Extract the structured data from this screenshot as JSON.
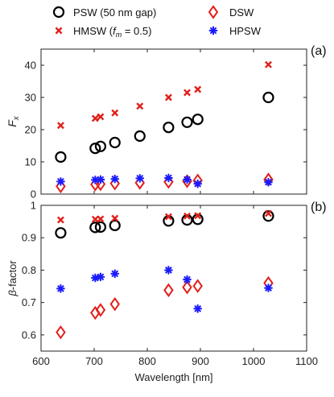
{
  "legend": [
    {
      "key": "psw",
      "label": "PSW (50 nm gap)",
      "color": "#000000",
      "marker": "circle"
    },
    {
      "key": "dsw",
      "label": "DSW",
      "color": "#e0201b",
      "marker": "diamond"
    },
    {
      "key": "hmsw",
      "label_prefix": "HMSW (",
      "label_var": "f",
      "label_sub": "m",
      "label_suffix": " = 0.5)",
      "color": "#e0201b",
      "marker": "x"
    },
    {
      "key": "hpsw",
      "label": "HPSW",
      "color": "#1a1aff",
      "marker": "asterisk"
    }
  ],
  "chart_data": [
    {
      "type": "scatter",
      "panel_tag": "(a)",
      "ylabel_var": "F",
      "ylabel_sub": "x",
      "xlim": [
        600,
        1100
      ],
      "ylim": [
        0,
        45
      ],
      "yticks": [
        0,
        10,
        20,
        30,
        40
      ],
      "xticks": [
        600,
        700,
        800,
        900,
        1000,
        1100
      ],
      "show_xtick_labels": false,
      "grid": false,
      "series": [
        {
          "key": "psw",
          "x": [
            637,
            702,
            712,
            739,
            786,
            840,
            875,
            895,
            1028
          ],
          "y": [
            11.5,
            14.2,
            14.8,
            16.0,
            18.0,
            20.7,
            22.3,
            23.2,
            30.0
          ]
        },
        {
          "key": "hmsw",
          "x": [
            637,
            702,
            712,
            739,
            786,
            840,
            875,
            895,
            1028
          ],
          "y": [
            21.3,
            23.5,
            24.0,
            25.2,
            27.3,
            30.0,
            31.5,
            32.5,
            40.2
          ]
        },
        {
          "key": "dsw",
          "x": [
            637,
            702,
            712,
            739,
            786,
            840,
            875,
            895,
            1028
          ],
          "y": [
            2.4,
            3.0,
            3.1,
            3.3,
            3.5,
            3.8,
            4.0,
            4.2,
            4.5
          ]
        },
        {
          "key": "hpsw",
          "x": [
            637,
            702,
            712,
            739,
            786,
            840,
            875,
            895,
            1028
          ],
          "y": [
            3.9,
            4.4,
            4.5,
            4.7,
            4.9,
            5.0,
            4.5,
            3.2,
            3.7
          ]
        }
      ]
    },
    {
      "type": "scatter",
      "panel_tag": "(b)",
      "ylabel_var": "β",
      "ylabel_suffix": "-factor",
      "xlabel": "Wavelength [nm]",
      "xlim": [
        600,
        1100
      ],
      "ylim": [
        0.55,
        1.0
      ],
      "yticks": [
        0.6,
        0.7,
        0.8,
        0.9,
        1.0
      ],
      "ytick_labels": [
        "0.6",
        "0.7",
        "0.8",
        "0.9",
        "1"
      ],
      "xticks": [
        600,
        700,
        800,
        900,
        1000,
        1100
      ],
      "xtick_labels": [
        "600",
        "700",
        "800",
        "900",
        "1000",
        "1100"
      ],
      "grid": false,
      "series": [
        {
          "key": "psw",
          "x": [
            637,
            702,
            712,
            739,
            840,
            875,
            895,
            1028
          ],
          "y": [
            0.915,
            0.932,
            0.933,
            0.938,
            0.952,
            0.955,
            0.957,
            0.967
          ]
        },
        {
          "key": "hmsw",
          "x": [
            637,
            702,
            712,
            739,
            840,
            875,
            895,
            1028
          ],
          "y": [
            0.955,
            0.957,
            0.958,
            0.96,
            0.965,
            0.967,
            0.968,
            0.975
          ]
        },
        {
          "key": "dsw",
          "x": [
            637,
            702,
            712,
            739,
            840,
            875,
            895,
            1028
          ],
          "y": [
            0.608,
            0.668,
            0.677,
            0.695,
            0.738,
            0.747,
            0.751,
            0.76
          ]
        },
        {
          "key": "hpsw",
          "x": [
            637,
            702,
            712,
            739,
            840,
            875,
            895,
            1028
          ],
          "y": [
            0.743,
            0.776,
            0.779,
            0.789,
            0.8,
            0.771,
            0.681,
            0.745
          ]
        }
      ]
    }
  ]
}
